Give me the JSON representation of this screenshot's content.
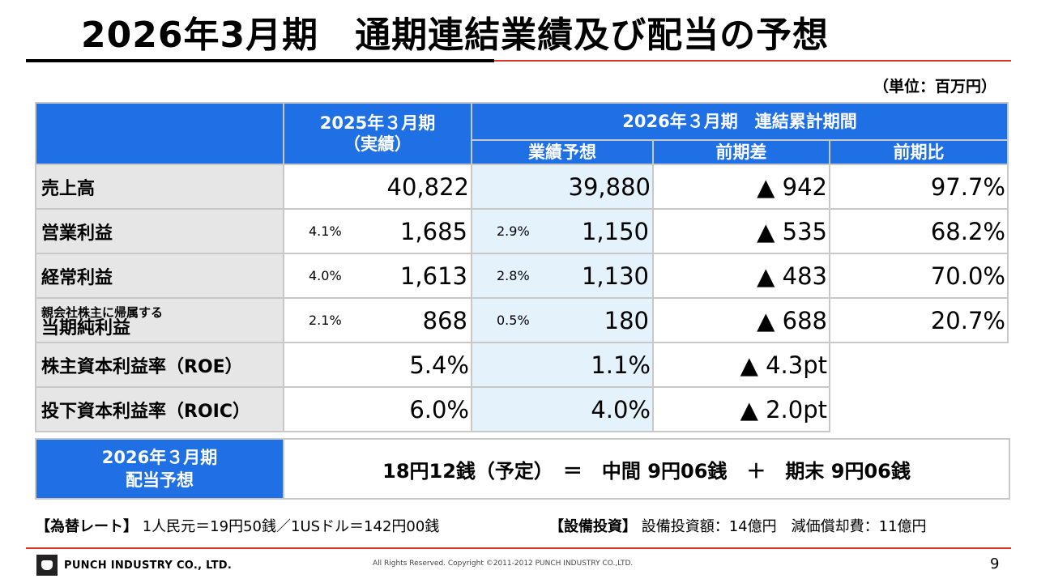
{
  "title": "2026年3月期　通期連結業績及び配当の予想",
  "unit": "（単位：百万円）",
  "header": {
    "prev_period_line1": "2025年３月期",
    "prev_period_line2": "（実績）",
    "cur_period": "2026年３月期　連結累計期間",
    "forecast": "業績予想",
    "diff": "前期差",
    "ratio": "前期比"
  },
  "rows": [
    {
      "label": "売上高",
      "prev_pct": "",
      "prev": "40,822",
      "fc_pct": "",
      "fc": "39,880",
      "diff": "▲ 942",
      "ratio": "97.7%"
    },
    {
      "label": "営業利益",
      "prev_pct": "4.1%",
      "prev": "1,685",
      "fc_pct": "2.9%",
      "fc": "1,150",
      "diff": "▲ 535",
      "ratio": "68.2%"
    },
    {
      "label": "経常利益",
      "prev_pct": "4.0%",
      "prev": "1,613",
      "fc_pct": "2.8%",
      "fc": "1,130",
      "diff": "▲ 483",
      "ratio": "70.0%"
    },
    {
      "label_small": "親会社株主に帰属する",
      "label": "当期純利益",
      "prev_pct": "2.1%",
      "prev": "868",
      "fc_pct": "0.5%",
      "fc": "180",
      "diff": "▲ 688",
      "ratio": "20.7%"
    },
    {
      "label": "株主資本利益率（ROE）",
      "prev": "5.4%",
      "fc": "1.1%",
      "diff": "▲ 4.3pt"
    },
    {
      "label": "投下資本利益率（ROIC）",
      "prev": "6.0%",
      "fc": "4.0%",
      "diff": "▲ 2.0pt"
    }
  ],
  "dividend": {
    "label_line1": "2026年３月期",
    "label_line2": "配当予想",
    "text": "18円12銭（予定）　＝　中間 9円06銭　＋　期末 9円06銭"
  },
  "fx_label": "【為替レート】",
  "fx_text": "1人民元＝19円50銭／1USドル＝142円00銭",
  "capex_label": "【設備投資】",
  "capex_text": "設備投資額：14億円　減価償却費：11億円",
  "footer": {
    "company": "PUNCH INDUSTRY CO., LTD.",
    "copyright": "All Rights Reserved. Copyright ©2011-2012  PUNCH  INDUSTRY  CO.,LTD.",
    "page": "9"
  }
}
